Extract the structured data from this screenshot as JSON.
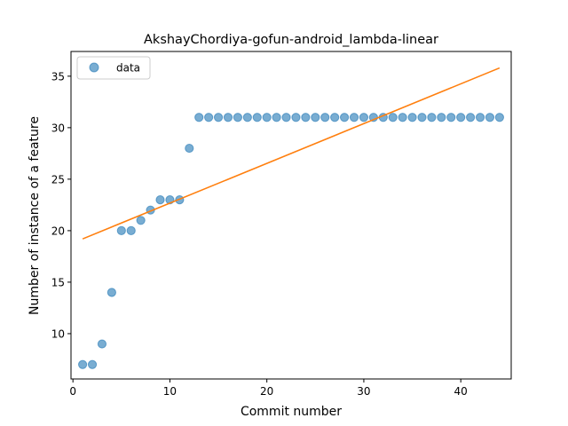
{
  "chart_data": {
    "type": "scatter",
    "title": "AkshayChordiya-gofun-android_lambda-linear",
    "xlabel": "Commit number",
    "ylabel": "Number of instance of a feature",
    "xlim": [
      -0.2,
      45.2
    ],
    "ylim": [
      5.6,
      37.4
    ],
    "xticks": [
      0,
      10,
      20,
      30,
      40
    ],
    "yticks": [
      10,
      15,
      20,
      25,
      30,
      35
    ],
    "grid": false,
    "legend_placement": "upper-left",
    "series": [
      {
        "name": "data",
        "kind": "scatter",
        "color": "#1f77b4",
        "x": [
          1,
          2,
          3,
          4,
          5,
          6,
          7,
          8,
          9,
          10,
          11,
          12,
          13,
          14,
          15,
          16,
          17,
          18,
          19,
          20,
          21,
          22,
          23,
          24,
          25,
          26,
          27,
          28,
          29,
          30,
          31,
          32,
          33,
          34,
          35,
          36,
          37,
          38,
          39,
          40,
          41,
          42,
          43,
          44
        ],
        "y": [
          7,
          7,
          9,
          14,
          20,
          20,
          21,
          22,
          23,
          23,
          23,
          28,
          31,
          31,
          31,
          31,
          31,
          31,
          31,
          31,
          31,
          31,
          31,
          31,
          31,
          31,
          31,
          31,
          31,
          31,
          31,
          31,
          31,
          31,
          31,
          31,
          31,
          31,
          31,
          31,
          31,
          31,
          31,
          31
        ]
      },
      {
        "kind": "line",
        "color": "#ff7f0e",
        "x": [
          1,
          44
        ],
        "y": [
          19.2,
          35.8
        ]
      }
    ]
  }
}
